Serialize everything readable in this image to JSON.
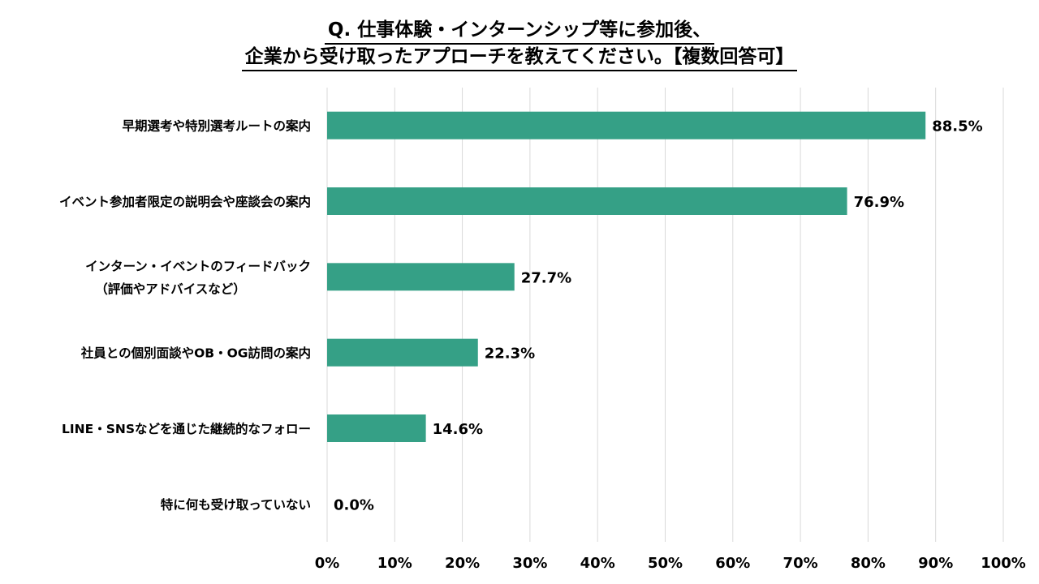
{
  "chart_data": {
    "type": "bar",
    "orientation": "horizontal",
    "title": [
      "Q. 仕事体験・インターンシップ等に参加後、",
      "企業から受け取ったアプローチを教えてください。【複数回答可】"
    ],
    "categories": [
      [
        "早期選考や特別選考ルートの案内"
      ],
      [
        "イベント参加者限定の説明会や座談会の案内"
      ],
      [
        "インターン・イベントのフィードバック",
        "（評価やアドバイスなど）"
      ],
      [
        "社員との個別面談やOB・OG訪問の案内"
      ],
      [
        "LINE・SNSなどを通じた継続的なフォロー"
      ],
      [
        "特に何も受け取っていない"
      ]
    ],
    "values": [
      88.5,
      76.9,
      27.7,
      22.3,
      14.6,
      0.0
    ],
    "value_labels": [
      "88.5%",
      "76.9%",
      "27.7%",
      "22.3%",
      "14.6%",
      "0.0%"
    ],
    "xlim": [
      0,
      100
    ],
    "xticks": [
      0,
      10,
      20,
      30,
      40,
      50,
      60,
      70,
      80,
      90,
      100
    ],
    "xtick_labels": [
      "0%",
      "10%",
      "20%",
      "30%",
      "40%",
      "50%",
      "60%",
      "70%",
      "80%",
      "90%",
      "100%"
    ],
    "grid": true,
    "bar_color": "#35A086",
    "grid_color": "#D9D9D9"
  }
}
